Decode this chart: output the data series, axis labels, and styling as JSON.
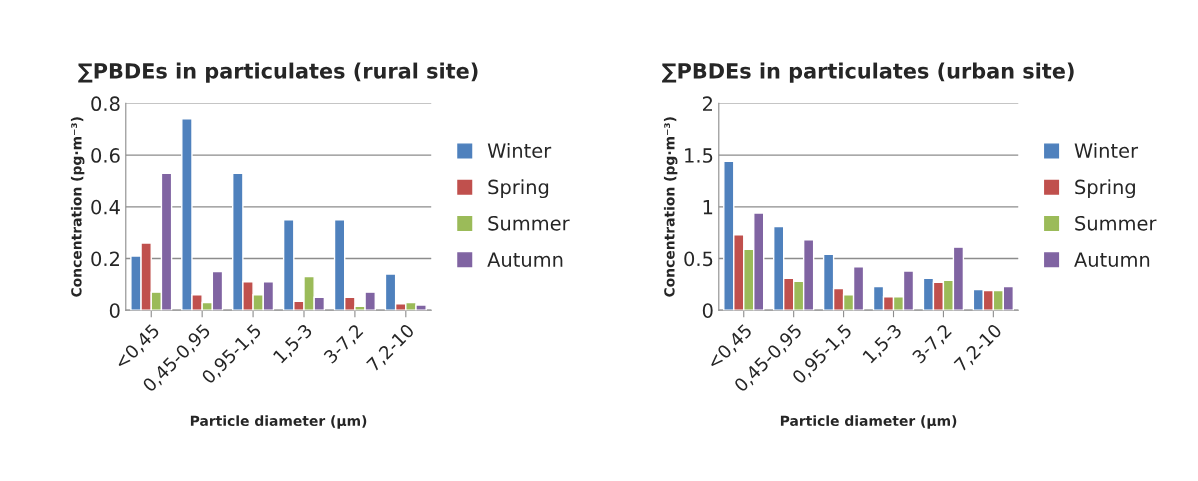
{
  "chart_data": [
    {
      "type": "bar",
      "title": "∑PBDEs in particulates (rural site)",
      "xlabel": "Particle diameter (µm)",
      "ylabel": "Concentration (pg·m⁻³)",
      "categories": [
        "<0,45",
        "0,45-0,95",
        "0,95-1,5",
        "1,5-3",
        "3-7,2",
        "7,2-10"
      ],
      "series": [
        {
          "name": "Winter",
          "color": "#4f81bd",
          "values": [
            0.21,
            0.74,
            0.53,
            0.35,
            0.35,
            0.14
          ]
        },
        {
          "name": "Spring",
          "color": "#c0504d",
          "values": [
            0.26,
            0.06,
            0.11,
            0.035,
            0.05,
            0.025
          ]
        },
        {
          "name": "Summer",
          "color": "#9bbb59",
          "values": [
            0.07,
            0.03,
            0.06,
            0.13,
            0.015,
            0.03
          ]
        },
        {
          "name": "Autumn",
          "color": "#8064a2",
          "values": [
            0.53,
            0.15,
            0.11,
            0.05,
            0.07,
            0.02
          ]
        }
      ],
      "ylim": [
        0,
        0.8
      ],
      "yticks": [
        0,
        0.2,
        0.4,
        0.6,
        0.8
      ],
      "grid": "y",
      "legend": "right"
    },
    {
      "type": "bar",
      "title": "∑PBDEs in particulates (urban site)",
      "xlabel": "Particle diameter (µm)",
      "ylabel": "Concentration (pg·m⁻³)",
      "categories": [
        "<0,45",
        "0,45-0,95",
        "0,95-1,5",
        "1,5-3",
        "3-7,2",
        "7,2-10"
      ],
      "series": [
        {
          "name": "Winter",
          "color": "#4f81bd",
          "values": [
            1.44,
            0.81,
            0.54,
            0.23,
            0.31,
            0.2
          ]
        },
        {
          "name": "Spring",
          "color": "#c0504d",
          "values": [
            0.73,
            0.31,
            0.21,
            0.13,
            0.27,
            0.19
          ]
        },
        {
          "name": "Summer",
          "color": "#9bbb59",
          "values": [
            0.59,
            0.28,
            0.15,
            0.13,
            0.29,
            0.19
          ]
        },
        {
          "name": "Autumn",
          "color": "#8064a2",
          "values": [
            0.94,
            0.68,
            0.42,
            0.38,
            0.61,
            0.23
          ]
        }
      ],
      "ylim": [
        0,
        2
      ],
      "yticks": [
        0,
        {
          "value": 0.5,
          "label": "0.5"
        },
        1,
        1.5,
        2
      ],
      "grid": "y",
      "legend": "right"
    }
  ]
}
